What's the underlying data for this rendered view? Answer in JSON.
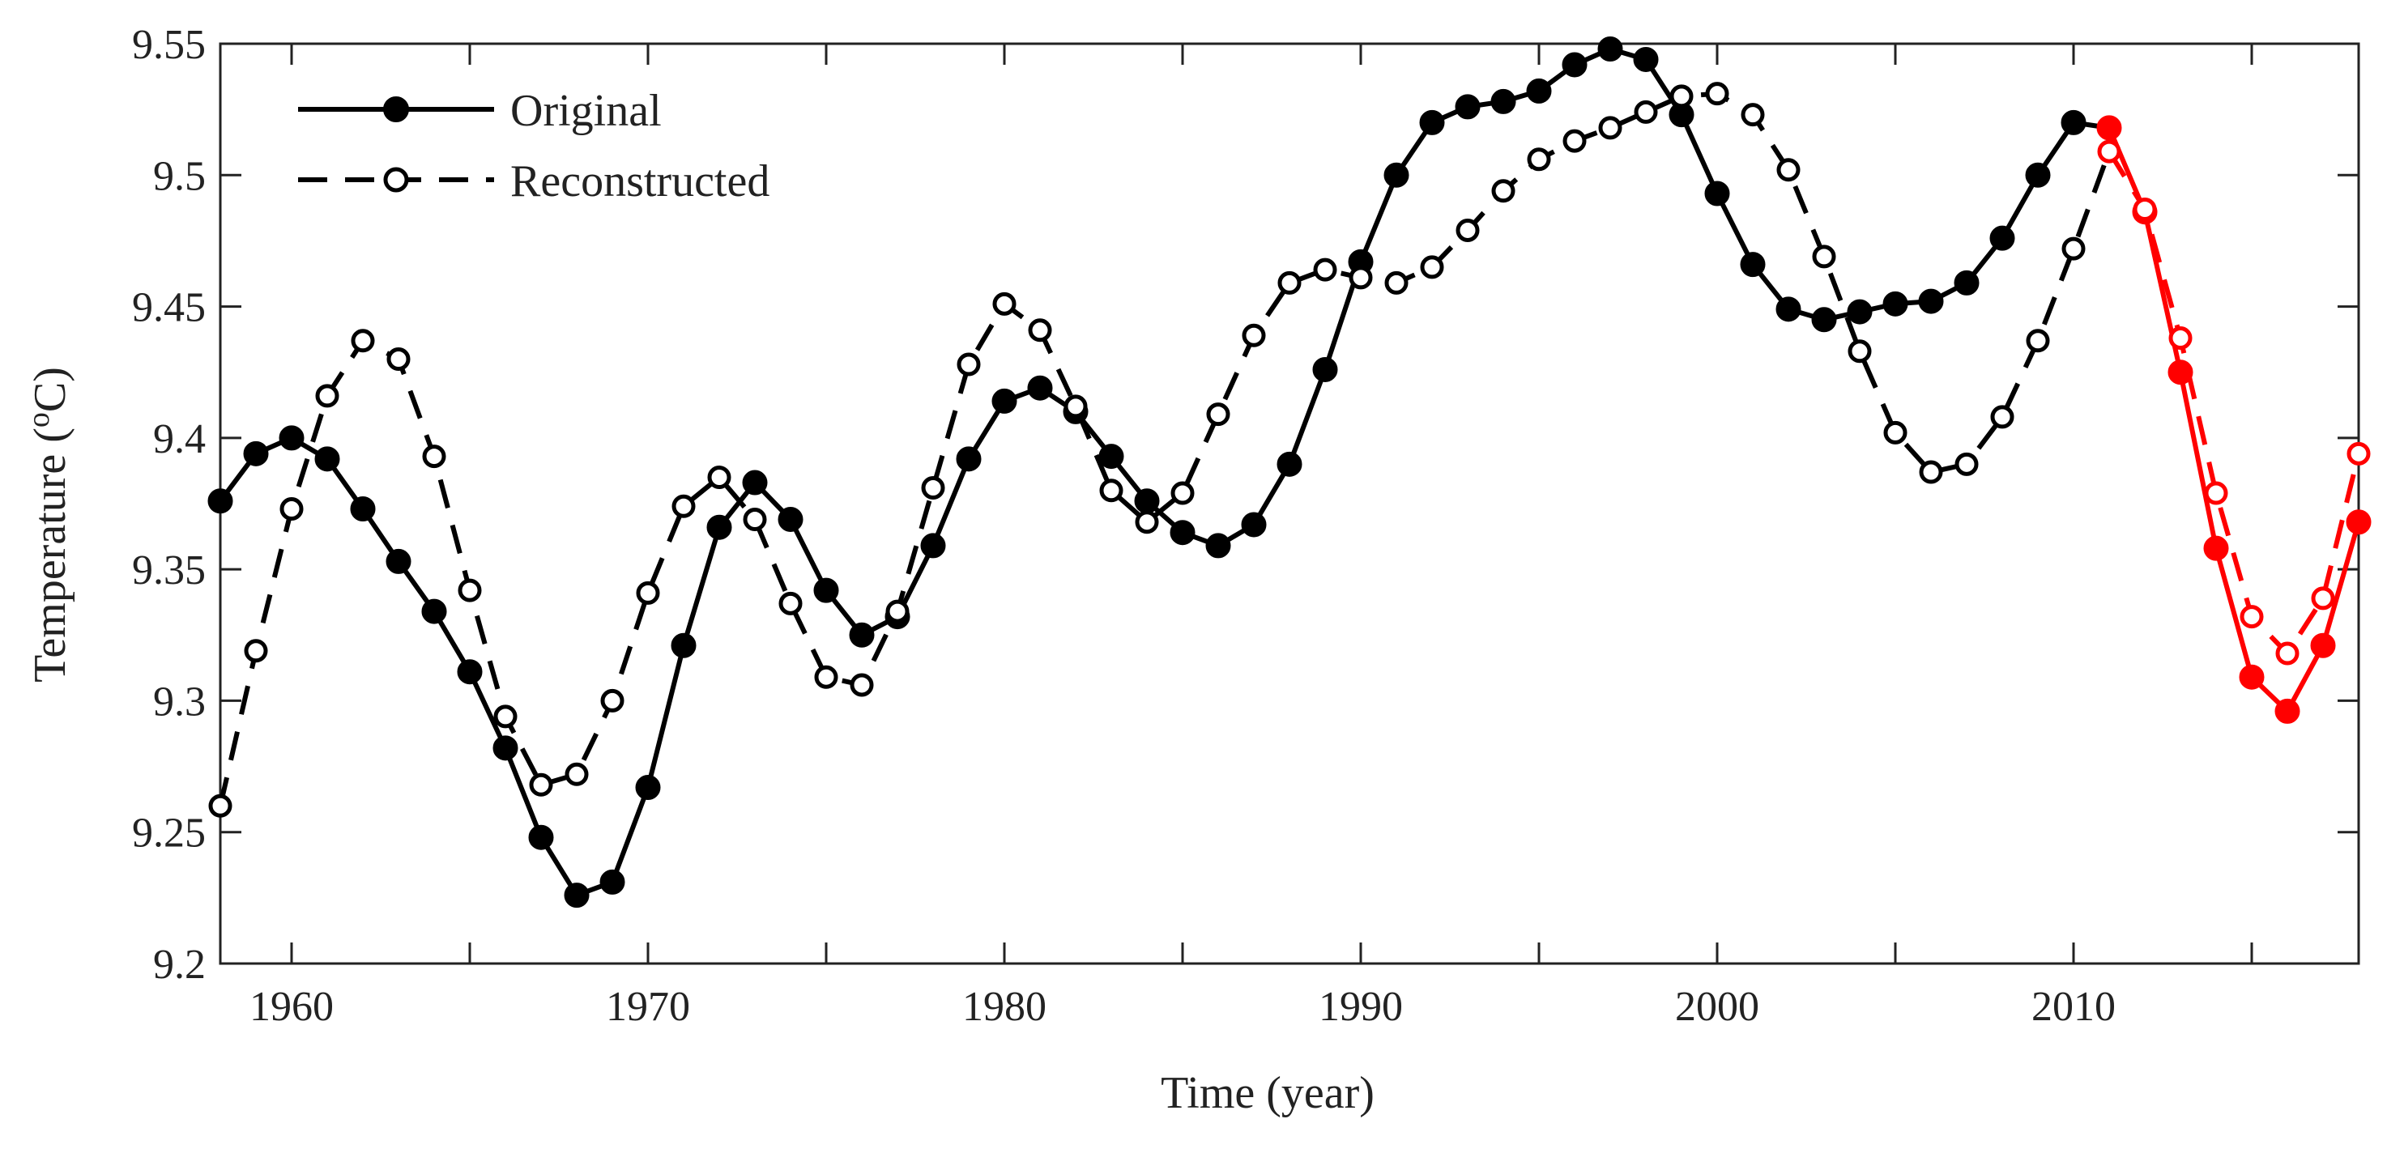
{
  "chart_data": {
    "type": "line",
    "title": "",
    "xlabel": "Time (year)",
    "ylabel_main": "Temperature (",
    "ylabel_sup": "o",
    "ylabel_end": "C)",
    "xlim": [
      1958,
      2018
    ],
    "ylim": [
      9.2,
      9.55
    ],
    "xticks": [
      1960,
      1970,
      1980,
      1990,
      2000,
      2010
    ],
    "xtick_labels": [
      "1960",
      "1970",
      "1980",
      "1990",
      "2000",
      "2010"
    ],
    "xminor": [
      1965,
      1975,
      1985,
      1995,
      2005,
      2015
    ],
    "yticks": [
      9.2,
      9.25,
      9.3,
      9.35,
      9.4,
      9.45,
      9.5,
      9.55
    ],
    "ytick_labels": [
      "9.2",
      "9.25",
      "9.3",
      "9.35",
      "9.4",
      "9.45",
      "9.5",
      "9.55"
    ],
    "grid": false,
    "legend_position": "top-left",
    "colors": {
      "historical": "#000000",
      "forecast": "#ff0000"
    },
    "forecast_start_year": 2011,
    "series": [
      {
        "name": "Original",
        "style": "solid",
        "marker": "filled-circle",
        "x": [
          1958,
          1959,
          1960,
          1961,
          1962,
          1963,
          1964,
          1965,
          1966,
          1967,
          1968,
          1969,
          1970,
          1971,
          1972,
          1973,
          1974,
          1975,
          1976,
          1977,
          1978,
          1979,
          1980,
          1981,
          1982,
          1983,
          1984,
          1985,
          1986,
          1987,
          1988,
          1989,
          1990,
          1991,
          1992,
          1993,
          1994,
          1995,
          1996,
          1997,
          1998,
          1999,
          2000,
          2001,
          2002,
          2003,
          2004,
          2005,
          2006,
          2007,
          2008,
          2009,
          2010,
          2011,
          2012,
          2013,
          2014,
          2015,
          2016,
          2017,
          2018
        ],
        "values": [
          9.376,
          9.394,
          9.4,
          9.392,
          9.373,
          9.353,
          9.334,
          9.311,
          9.282,
          9.248,
          9.226,
          9.231,
          9.267,
          9.321,
          9.366,
          9.383,
          9.369,
          9.342,
          9.325,
          9.332,
          9.359,
          9.392,
          9.414,
          9.419,
          9.41,
          9.393,
          9.376,
          9.364,
          9.359,
          9.367,
          9.39,
          9.426,
          9.467,
          9.5,
          9.52,
          9.526,
          9.528,
          9.532,
          9.542,
          9.548,
          9.544,
          9.523,
          9.493,
          9.466,
          9.449,
          9.445,
          9.448,
          9.451,
          9.452,
          9.459,
          9.476,
          9.5,
          9.52,
          9.518,
          9.486,
          9.425,
          9.358,
          9.309,
          9.296,
          9.321,
          9.368
        ]
      },
      {
        "name": "Reconstructed",
        "style": "dashed",
        "marker": "open-circle",
        "x": [
          1958,
          1959,
          1960,
          1961,
          1962,
          1963,
          1964,
          1965,
          1966,
          1967,
          1968,
          1969,
          1970,
          1971,
          1972,
          1973,
          1974,
          1975,
          1976,
          1977,
          1978,
          1979,
          1980,
          1981,
          1982,
          1983,
          1984,
          1985,
          1986,
          1987,
          1988,
          1989,
          1990,
          1991,
          1992,
          1993,
          1994,
          1995,
          1996,
          1997,
          1998,
          1999,
          2000,
          2001,
          2002,
          2003,
          2004,
          2005,
          2006,
          2007,
          2008,
          2009,
          2010,
          2011,
          2012,
          2013,
          2014,
          2015,
          2016,
          2017,
          2018
        ],
        "values": [
          9.26,
          9.319,
          9.373,
          9.416,
          9.437,
          9.43,
          9.393,
          9.342,
          9.294,
          9.268,
          9.272,
          9.3,
          9.341,
          9.374,
          9.385,
          9.369,
          9.337,
          9.309,
          9.306,
          9.334,
          9.381,
          9.428,
          9.451,
          9.441,
          9.412,
          9.38,
          9.368,
          9.379,
          9.409,
          9.439,
          9.459,
          9.464,
          9.461,
          9.459,
          9.465,
          9.479,
          9.494,
          9.506,
          9.513,
          9.518,
          9.524,
          9.53,
          9.531,
          9.523,
          9.502,
          9.469,
          9.433,
          9.402,
          9.387,
          9.39,
          9.408,
          9.437,
          9.472,
          9.509,
          9.487,
          9.438,
          9.379,
          9.332,
          9.318,
          9.339,
          9.394
        ]
      }
    ]
  }
}
